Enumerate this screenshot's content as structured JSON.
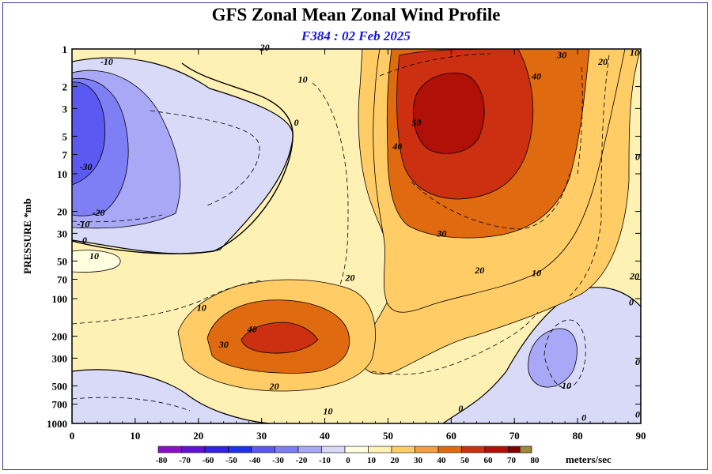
{
  "title": "GFS Zonal Mean Zonal Wind Profile",
  "subtitle": "F384 : 02 Feb 2025",
  "chart_data": {
    "type": "heatmap",
    "title": "GFS Zonal Mean Zonal Wind Profile",
    "subtitle": "F384 : 02 Feb 2025",
    "xlabel": "",
    "ylabel": "PRESSURE *mb",
    "xlim": [
      0,
      90
    ],
    "ylim_pressure": [
      1000,
      1
    ],
    "y_scale": "log",
    "x_ticks": [
      0,
      10,
      20,
      30,
      40,
      50,
      60,
      70,
      80,
      90
    ],
    "y_ticks": [
      1,
      2,
      3,
      5,
      7,
      10,
      20,
      30,
      50,
      70,
      100,
      200,
      300,
      500,
      700,
      1000
    ],
    "colorbar": {
      "label": "meters/sec",
      "levels": [
        -80,
        -70,
        -60,
        -50,
        -40,
        -30,
        -20,
        -10,
        0,
        10,
        20,
        30,
        40,
        50,
        60,
        70,
        80
      ],
      "colors": [
        "#8a10c8",
        "#6010d8",
        "#3020e8",
        "#2030f0",
        "#5a5af2",
        "#7f7ff5",
        "#a8a8f6",
        "#d8daf8",
        "#ffffe0",
        "#fff0b4",
        "#ffcc66",
        "#f5a040",
        "#e06a10",
        "#cc3010",
        "#b01008",
        "#800000",
        "#a08838"
      ]
    },
    "features": [
      {
        "kind": "max",
        "value": 55,
        "lat": 60,
        "pressure": 3
      },
      {
        "kind": "max",
        "value": 45,
        "lat": 32,
        "pressure": 200
      },
      {
        "kind": "min",
        "value": -35,
        "lat": 2,
        "pressure": 5
      },
      {
        "kind": "min",
        "value": -15,
        "lat": 77,
        "pressure": 300
      }
    ],
    "contour_labels": [
      {
        "text": "-10",
        "lat": 5.5,
        "pressure": 1.3
      },
      {
        "text": "20",
        "lat": 30.5,
        "pressure": 1.0
      },
      {
        "text": "10",
        "lat": 36.5,
        "pressure": 1.8
      },
      {
        "text": "0",
        "lat": 35.5,
        "pressure": 4.0
      },
      {
        "text": "-30",
        "lat": 2.2,
        "pressure": 9
      },
      {
        "text": "-20",
        "lat": 4.2,
        "pressure": 21
      },
      {
        "text": "-10",
        "lat": 1.8,
        "pressure": 26
      },
      {
        "text": "0",
        "lat": 2.0,
        "pressure": 35
      },
      {
        "text": "10",
        "lat": 3.5,
        "pressure": 47
      },
      {
        "text": "50",
        "lat": 54.5,
        "pressure": 4.0
      },
      {
        "text": "40",
        "lat": 51.5,
        "pressure": 6.2
      },
      {
        "text": "40",
        "lat": 73.5,
        "pressure": 1.7
      },
      {
        "text": "30",
        "lat": 77.5,
        "pressure": 1.15
      },
      {
        "text": "20",
        "lat": 84.0,
        "pressure": 1.3
      },
      {
        "text": "10",
        "lat": 89.0,
        "pressure": 1.1
      },
      {
        "text": "0",
        "lat": 89.5,
        "pressure": 7.5
      },
      {
        "text": "30",
        "lat": 58.5,
        "pressure": 31
      },
      {
        "text": "20",
        "lat": 64.5,
        "pressure": 61
      },
      {
        "text": "10",
        "lat": 73.5,
        "pressure": 64
      },
      {
        "text": "20",
        "lat": 89.0,
        "pressure": 68
      },
      {
        "text": "20",
        "lat": 44.0,
        "pressure": 70
      },
      {
        "text": "10",
        "lat": 20.5,
        "pressure": 122
      },
      {
        "text": "40",
        "lat": 28.5,
        "pressure": 180
      },
      {
        "text": "30",
        "lat": 24.0,
        "pressure": 240
      },
      {
        "text": "0",
        "lat": 88.5,
        "pressure": 110
      },
      {
        "text": "20",
        "lat": 32.0,
        "pressure": 520
      },
      {
        "text": "10",
        "lat": 40.5,
        "pressure": 820
      },
      {
        "text": "0",
        "lat": 61.5,
        "pressure": 780
      },
      {
        "text": "-10",
        "lat": 78.0,
        "pressure": 510
      },
      {
        "text": "0",
        "lat": 89.5,
        "pressure": 330
      },
      {
        "text": "0",
        "lat": 81.0,
        "pressure": 920
      },
      {
        "text": "0",
        "lat": 89.5,
        "pressure": 870
      }
    ]
  }
}
